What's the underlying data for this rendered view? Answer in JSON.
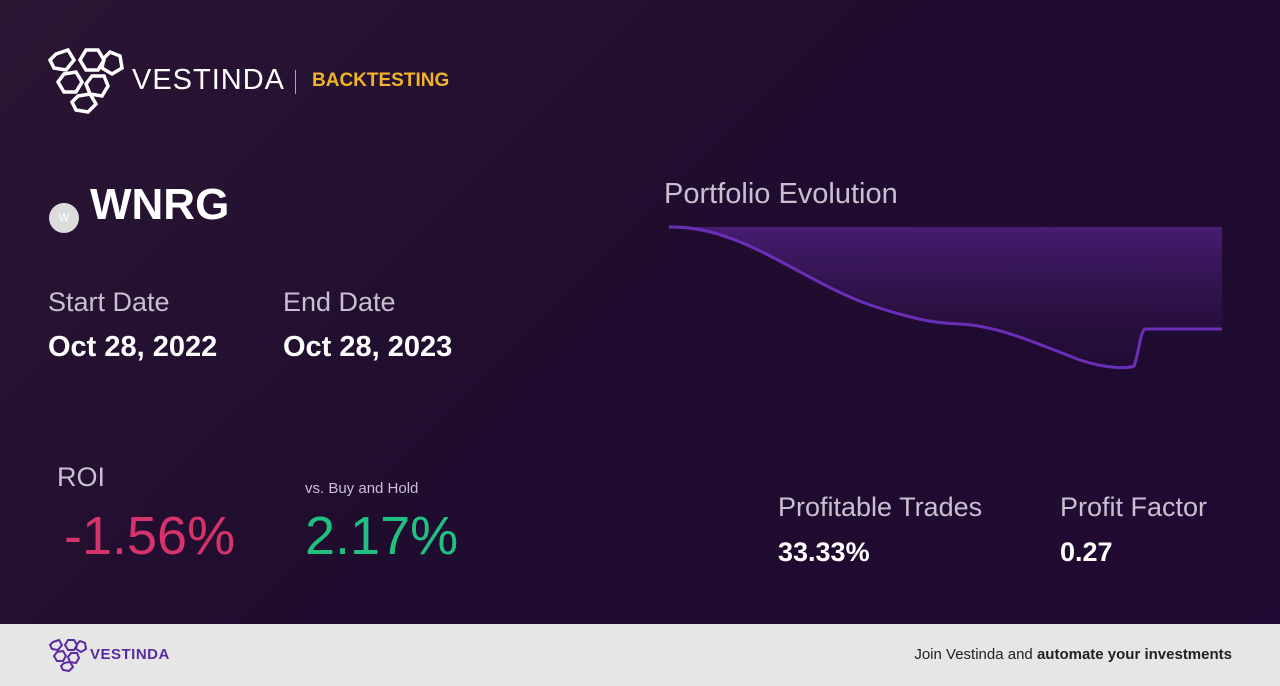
{
  "header": {
    "brand": "VESTINDA",
    "section": "BACKTESTING"
  },
  "asset": {
    "icon": "W",
    "ticker": "WNRG"
  },
  "dates": {
    "start_label": "Start Date",
    "start": "Oct 28, 2022",
    "end_label": "End Date",
    "end": "Oct 28, 2023"
  },
  "chart": {
    "title": "Portfolio Evolution"
  },
  "metrics": {
    "roi_label": "ROI",
    "roi": "-1.56%",
    "bh_label": "vs. Buy and Hold",
    "bh": "2.17%",
    "pt_label": "Profitable Trades",
    "pt": "33.33%",
    "pf_label": "Profit Factor",
    "pf": "0.27"
  },
  "footer": {
    "brand": "VESTINDA",
    "cta_prefix": "Join Vestinda and",
    "cta_bold": "automate your investments"
  }
}
